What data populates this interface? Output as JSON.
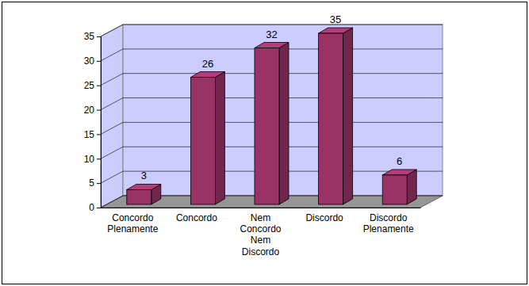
{
  "chart_data": {
    "type": "bar",
    "categories": [
      "Concordo Plenamente",
      "Concordo",
      "Nem Concordo Nem Discordo",
      "Discordo",
      "Discordo Plenamente"
    ],
    "values": [
      3,
      26,
      32,
      35,
      6
    ],
    "color": "#993366",
    "ylim": [
      0,
      35
    ],
    "yticks": [
      0,
      5,
      10,
      15,
      20,
      25,
      30,
      35
    ],
    "grid": true,
    "data_labels": true
  }
}
